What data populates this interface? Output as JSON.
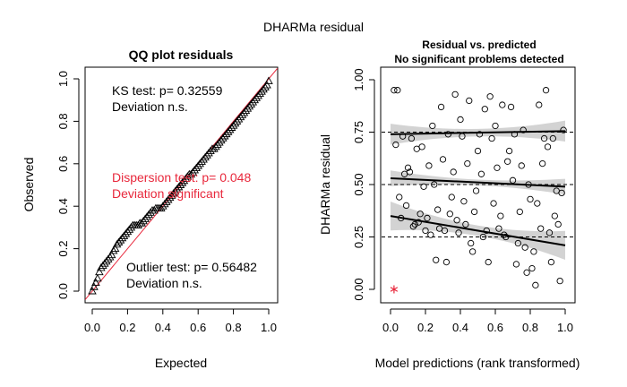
{
  "figure_title": "DHARMa residual",
  "chart_data": [
    {
      "type": "scatter",
      "title": "QQ plot residuals",
      "xlabel": "Expected",
      "ylabel": "Observed",
      "xlim": [
        0,
        1
      ],
      "ylim": [
        0,
        1
      ],
      "xticks": [
        "0.0",
        "0.2",
        "0.4",
        "0.6",
        "0.8",
        "1.0"
      ],
      "yticks": [
        "0.0",
        "0.2",
        "0.4",
        "0.6",
        "0.8",
        "1.0"
      ],
      "reference_line": "y = x",
      "marker": "open triangle",
      "series": [
        {
          "x": [
            0.0,
            0.01,
            0.02,
            0.03,
            0.04,
            0.05,
            0.06,
            0.07,
            0.08,
            0.09,
            0.1,
            0.11,
            0.12,
            0.13,
            0.14,
            0.15,
            0.16,
            0.17,
            0.18,
            0.19,
            0.2,
            0.21,
            0.22,
            0.23,
            0.24,
            0.25,
            0.26,
            0.27,
            0.28,
            0.29,
            0.3,
            0.31,
            0.32,
            0.33,
            0.34,
            0.35,
            0.36,
            0.37,
            0.38,
            0.39,
            0.4,
            0.41,
            0.42,
            0.43,
            0.44,
            0.45,
            0.46,
            0.47,
            0.48,
            0.49,
            0.5,
            0.51,
            0.52,
            0.53,
            0.54,
            0.55,
            0.56,
            0.57,
            0.58,
            0.59,
            0.6,
            0.61,
            0.62,
            0.63,
            0.64,
            0.65,
            0.66,
            0.67,
            0.68,
            0.69,
            0.7,
            0.71,
            0.72,
            0.73,
            0.74,
            0.75,
            0.76,
            0.77,
            0.78,
            0.79,
            0.8,
            0.81,
            0.82,
            0.83,
            0.84,
            0.85,
            0.86,
            0.87,
            0.88,
            0.89,
            0.9,
            0.91,
            0.92,
            0.93,
            0.94,
            0.95,
            0.96,
            0.97,
            0.98,
            0.99,
            1.0
          ],
          "y": [
            0.0,
            0.02,
            0.04,
            0.06,
            0.09,
            0.11,
            0.12,
            0.13,
            0.14,
            0.15,
            0.16,
            0.17,
            0.19,
            0.2,
            0.22,
            0.23,
            0.24,
            0.25,
            0.26,
            0.27,
            0.28,
            0.29,
            0.3,
            0.31,
            0.31,
            0.31,
            0.31,
            0.32,
            0.32,
            0.33,
            0.34,
            0.35,
            0.36,
            0.37,
            0.38,
            0.38,
            0.39,
            0.39,
            0.39,
            0.39,
            0.4,
            0.41,
            0.42,
            0.43,
            0.44,
            0.45,
            0.46,
            0.47,
            0.48,
            0.49,
            0.5,
            0.51,
            0.52,
            0.53,
            0.54,
            0.55,
            0.55,
            0.56,
            0.57,
            0.58,
            0.59,
            0.6,
            0.61,
            0.62,
            0.63,
            0.64,
            0.65,
            0.66,
            0.67,
            0.67,
            0.68,
            0.69,
            0.7,
            0.71,
            0.72,
            0.73,
            0.74,
            0.75,
            0.76,
            0.77,
            0.78,
            0.79,
            0.8,
            0.81,
            0.82,
            0.83,
            0.84,
            0.85,
            0.86,
            0.87,
            0.88,
            0.89,
            0.9,
            0.91,
            0.92,
            0.93,
            0.94,
            0.95,
            0.96,
            0.97,
            0.99
          ]
        }
      ],
      "annotations": {
        "ks_line1": "KS test: p= 0.32559",
        "ks_line2": "Deviation  n.s.",
        "disp_line1": "Dispersion test: p= 0.048",
        "disp_line2": "Deviation significant",
        "outlier_line1": "Outlier test: p= 0.56482",
        "outlier_line2": "Deviation  n.s."
      },
      "colors": {
        "reference": "#e8283c",
        "significant": "#e8283c",
        "points": "#000000"
      }
    },
    {
      "type": "scatter",
      "title": "Residual vs. predicted",
      "subtitle": "No significant problems detected",
      "xlabel": "Model predictions (rank transformed)",
      "ylabel": "DHARMa residual",
      "xlim": [
        0,
        1
      ],
      "ylim": [
        0,
        1
      ],
      "xticks": [
        "0.0",
        "0.2",
        "0.4",
        "0.6",
        "0.8",
        "1.0"
      ],
      "yticks": [
        "0.00",
        "0.25",
        "0.50",
        "0.75",
        "1.00"
      ],
      "reference_hlines": [
        0.25,
        0.5,
        0.75
      ],
      "marker": "open circle",
      "series": [
        {
          "x": [
            0.02,
            0.03,
            0.05,
            0.06,
            0.08,
            0.1,
            0.12,
            0.14,
            0.16,
            0.18,
            0.2,
            0.22,
            0.24,
            0.26,
            0.28,
            0.3,
            0.32,
            0.34,
            0.36,
            0.38,
            0.4,
            0.42,
            0.44,
            0.46,
            0.48,
            0.5,
            0.52,
            0.54,
            0.56,
            0.58,
            0.6,
            0.62,
            0.64,
            0.66,
            0.68,
            0.7,
            0.72,
            0.74,
            0.76,
            0.78,
            0.8,
            0.82,
            0.84,
            0.86,
            0.88,
            0.9,
            0.92,
            0.94,
            0.96,
            0.98,
            0.04,
            0.07,
            0.09,
            0.11,
            0.13,
            0.15,
            0.17,
            0.19,
            0.21,
            0.23,
            0.25,
            0.27,
            0.29,
            0.31,
            0.33,
            0.35,
            0.37,
            0.39,
            0.41,
            0.43,
            0.45,
            0.47,
            0.49,
            0.51,
            0.53,
            0.55,
            0.57,
            0.59,
            0.61,
            0.63,
            0.65,
            0.67,
            0.69,
            0.71,
            0.73,
            0.75,
            0.77,
            0.79,
            0.81,
            0.83,
            0.85,
            0.87,
            0.89,
            0.91,
            0.93,
            0.95,
            0.97,
            0.99
          ],
          "y": [
            0.95,
            0.69,
            0.44,
            0.34,
            0.55,
            0.58,
            0.72,
            0.31,
            0.32,
            0.68,
            0.28,
            0.59,
            0.78,
            0.14,
            0.29,
            0.62,
            0.13,
            0.36,
            0.56,
            0.33,
            0.81,
            0.42,
            0.6,
            0.22,
            0.37,
            0.66,
            0.55,
            0.86,
            0.13,
            0.72,
            0.78,
            0.29,
            0.88,
            0.25,
            0.66,
            0.52,
            0.12,
            0.37,
            0.76,
            0.08,
            0.43,
            0.18,
            0.41,
            0.29,
            0.72,
            0.68,
            0.13,
            0.35,
            0.31,
            0.46,
            0.95,
            0.73,
            0.4,
            0.56,
            0.3,
            0.67,
            0.36,
            0.49,
            0.34,
            0.26,
            0.5,
            0.38,
            0.87,
            0.28,
            0.74,
            0.44,
            0.93,
            0.27,
            0.73,
            0.31,
            0.9,
            0.18,
            0.47,
            0.74,
            0.25,
            0.28,
            0.92,
            0.41,
            0.58,
            0.35,
            0.26,
            0.61,
            0.87,
            0.74,
            0.22,
            0.59,
            0.2,
            0.5,
            0.1,
            0.02,
            0.88,
            0.6,
            0.95,
            0.27,
            0.72,
            0.47,
            0.04,
            0.76
          ]
        }
      ],
      "outliers": [
        {
          "x": 0.02,
          "y": 0.0
        }
      ],
      "quantile_fits": [
        {
          "quantile": 0.25,
          "x": [
            0,
            1
          ],
          "y": [
            0.35,
            0.21
          ]
        },
        {
          "quantile": 0.5,
          "x": [
            0,
            1
          ],
          "y": [
            0.53,
            0.49
          ]
        },
        {
          "quantile": 0.75,
          "x": [
            0,
            1
          ],
          "y": [
            0.74,
            0.755
          ]
        }
      ],
      "colors": {
        "fit": "#000000",
        "band": "#d3d3d3",
        "outlier": "#e8283c"
      }
    }
  ]
}
